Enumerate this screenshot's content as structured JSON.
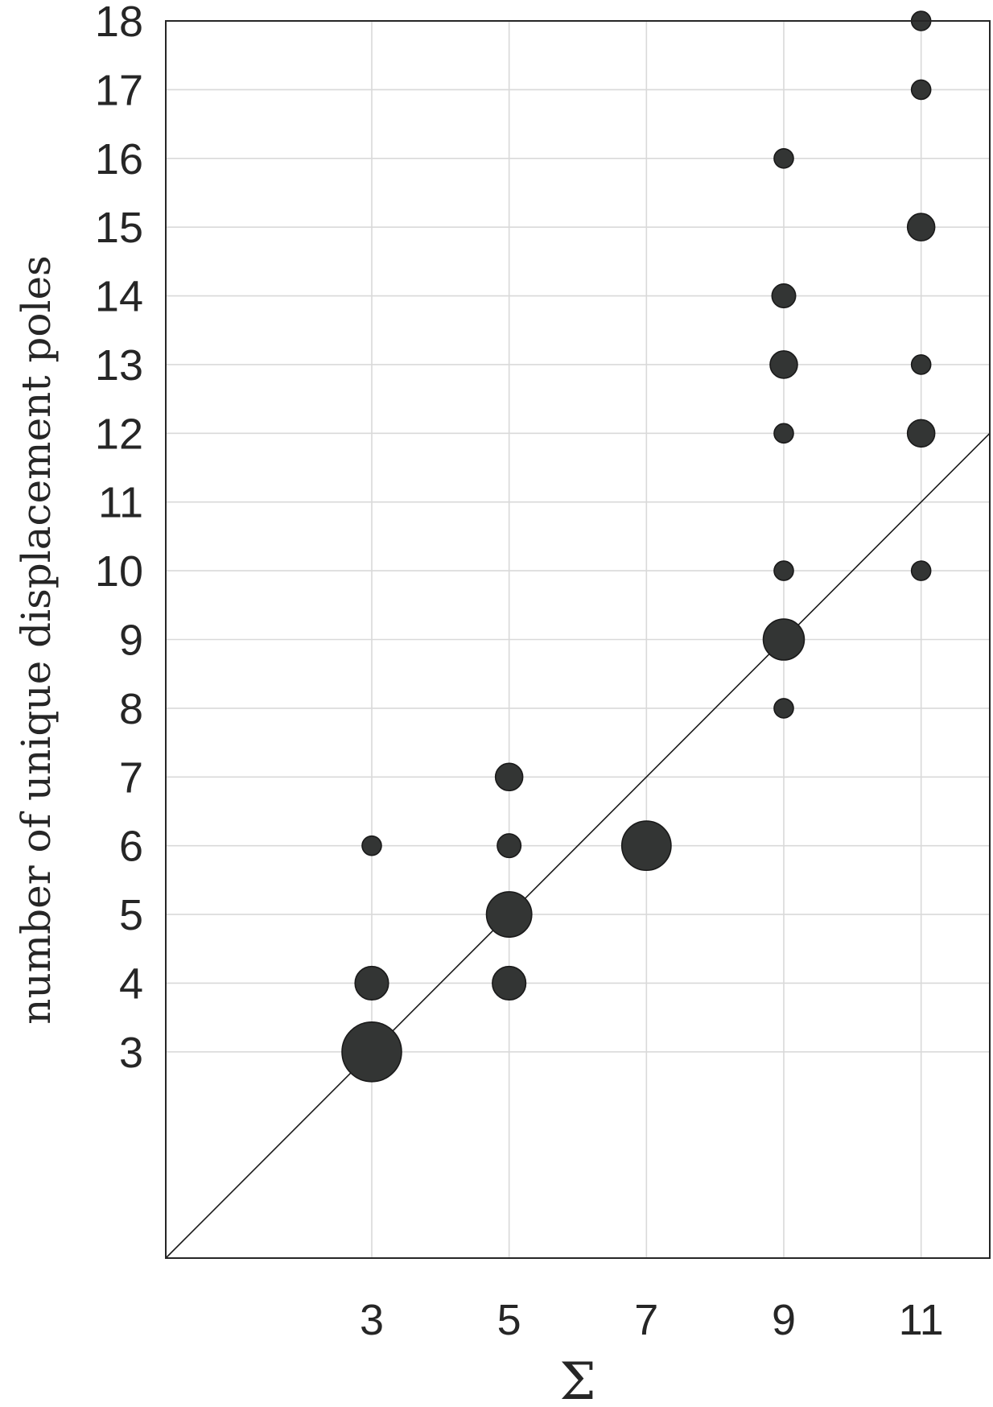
{
  "chart_data": {
    "type": "scatter",
    "xlabel": "Σ",
    "ylabel": "number of unique displacement poles",
    "xlim": [
      0,
      12
    ],
    "ylim": [
      0,
      18
    ],
    "xticks": [
      3,
      5,
      7,
      9,
      11
    ],
    "yticks": [
      3,
      4,
      5,
      6,
      7,
      8,
      9,
      10,
      11,
      12,
      13,
      14,
      15,
      16,
      17,
      18
    ],
    "grid": true,
    "marker_color": "#333534",
    "marker_edge_color": "#1a1a1a",
    "reference_line": {
      "label": "y = x",
      "from": [
        0,
        0
      ],
      "to": [
        12,
        12
      ]
    },
    "points": [
      {
        "x": 3,
        "y": 3,
        "size": 9.5
      },
      {
        "x": 3,
        "y": 4,
        "size": 3
      },
      {
        "x": 3,
        "y": 6,
        "size": 1
      },
      {
        "x": 5,
        "y": 4,
        "size": 3
      },
      {
        "x": 5,
        "y": 5,
        "size": 5.5
      },
      {
        "x": 5,
        "y": 6,
        "size": 1.5
      },
      {
        "x": 5,
        "y": 7,
        "size": 2
      },
      {
        "x": 7,
        "y": 6,
        "size": 6.5
      },
      {
        "x": 9,
        "y": 8,
        "size": 1
      },
      {
        "x": 9,
        "y": 9,
        "size": 4.5
      },
      {
        "x": 9,
        "y": 10,
        "size": 1
      },
      {
        "x": 9,
        "y": 12,
        "size": 1
      },
      {
        "x": 9,
        "y": 13,
        "size": 2
      },
      {
        "x": 9,
        "y": 14,
        "size": 1.5
      },
      {
        "x": 9,
        "y": 16,
        "size": 1
      },
      {
        "x": 11,
        "y": 10,
        "size": 1
      },
      {
        "x": 11,
        "y": 12,
        "size": 2
      },
      {
        "x": 11,
        "y": 13,
        "size": 1
      },
      {
        "x": 11,
        "y": 15,
        "size": 2
      },
      {
        "x": 11,
        "y": 17,
        "size": 1
      },
      {
        "x": 11,
        "y": 18,
        "size": 1
      }
    ]
  }
}
